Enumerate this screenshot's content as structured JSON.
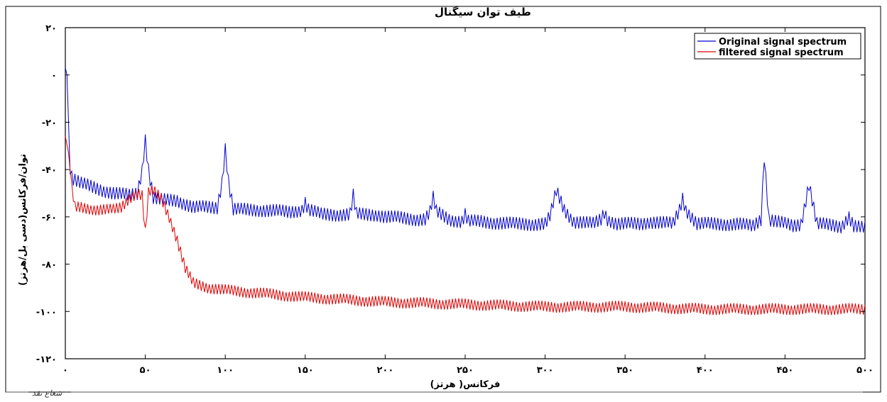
{
  "chart_data": {
    "type": "line",
    "title": "طیف توان سیگنال",
    "xlabel": "فرکانس( هرتز)",
    "ylabel": "توان/فرکانس(دسی بل/هرتز)",
    "xlim": [
      0,
      500
    ],
    "ylim": [
      -120,
      20
    ],
    "x_ticks": [
      0,
      50,
      100,
      150,
      200,
      250,
      300,
      350,
      400,
      450,
      500
    ],
    "x_tick_labels": [
      "۰",
      "۵۰",
      "۱۰۰",
      "۱۵۰",
      "۲۰۰",
      "۲۵۰",
      "۳۰۰",
      "۳۵۰",
      "۴۰۰",
      "۴۵۰",
      "۵۰۰"
    ],
    "y_ticks": [
      20,
      0,
      -20,
      -40,
      -60,
      -80,
      -100,
      -120
    ],
    "y_tick_labels": [
      "۲۰",
      "۰",
      "-۲۰",
      "-۴۰",
      "-۶۰",
      "-۸۰",
      "-۱۰۰",
      "-۱۲۰"
    ],
    "grid": false,
    "legend_position": "top-right",
    "series": [
      {
        "name": "Original signal spectrum",
        "color": "#0000cc",
        "noise": 3,
        "x": [
          0,
          1,
          2,
          3,
          5,
          10,
          20,
          30,
          40,
          45,
          48,
          50,
          52,
          55,
          60,
          70,
          80,
          90,
          95,
          98,
          100,
          102,
          105,
          110,
          120,
          140,
          148,
          150,
          152,
          160,
          178,
          180,
          182,
          195,
          200,
          220,
          225,
          228,
          230,
          232,
          235,
          240,
          248,
          250,
          252,
          260,
          280,
          300,
          303,
          307,
          309,
          312,
          318,
          330,
          335,
          337,
          339,
          345,
          360,
          365,
          380,
          384,
          386,
          388,
          395,
          420,
          430,
          435,
          437,
          440,
          455,
          460,
          465,
          470,
          485,
          490,
          493,
          500
        ],
        "values": [
          3,
          0,
          -20,
          -42,
          -44,
          -46,
          -48,
          -50,
          -51,
          -50,
          -40,
          -27,
          -40,
          -52,
          -53,
          -53,
          -56,
          -56,
          -56,
          -45,
          -31,
          -45,
          -57,
          -57,
          -57,
          -58,
          -57,
          -54,
          -57,
          -59,
          -59,
          -51,
          -59,
          -59,
          -60,
          -61,
          -61,
          -58,
          -52,
          -58,
          -59,
          -61,
          -62,
          -59,
          -62,
          -62,
          -63,
          -63,
          -60,
          -49,
          -52,
          -57,
          -62,
          -63,
          -61,
          -58,
          -61,
          -63,
          -63,
          -62,
          -63,
          -57,
          -52,
          -57,
          -63,
          -63,
          -64,
          -61,
          -34,
          -61,
          -64,
          -63,
          -46,
          -63,
          -64,
          -60,
          -64,
          -65
        ]
      },
      {
        "name": "filtered signal spectrum",
        "color": "#dd0000",
        "noise": 2.5,
        "x": [
          0,
          2,
          4,
          6,
          10,
          20,
          30,
          35,
          40,
          45,
          48,
          50,
          52,
          55,
          60,
          65,
          70,
          75,
          80,
          90,
          100,
          150,
          200,
          250,
          300,
          350,
          400,
          450,
          500
        ],
        "values": [
          -26,
          -33,
          -48,
          -56,
          -56,
          -57,
          -57,
          -56,
          -52,
          -50,
          -51,
          -67,
          -50,
          -49,
          -52,
          -60,
          -70,
          -82,
          -88,
          -90,
          -91,
          -94,
          -96,
          -97,
          -98,
          -98,
          -99,
          -99,
          -99
        ]
      }
    ],
    "watermark": "شعاع نقد"
  }
}
